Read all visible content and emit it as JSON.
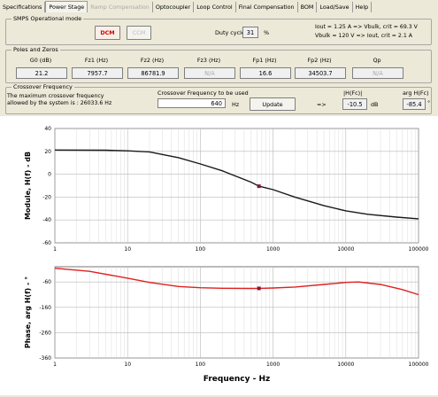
{
  "tabs": [
    {
      "label": "Specifications",
      "state": "normal"
    },
    {
      "label": "Power Stage",
      "state": "active"
    },
    {
      "label": "Ramp Compensation",
      "state": "disabled"
    },
    {
      "label": "Optocoupler",
      "state": "normal"
    },
    {
      "label": "Loop Control",
      "state": "normal"
    },
    {
      "label": "Final Compensation",
      "state": "normal"
    },
    {
      "label": "BOM",
      "state": "normal"
    },
    {
      "label": "Load/Save",
      "state": "normal"
    },
    {
      "label": "Help",
      "state": "normal"
    }
  ],
  "smps": {
    "group_label": "SMPS Operational mode",
    "mode1": "DCM",
    "mode2": "CCM",
    "duty_label": "Duty cycle",
    "duty_value": "31",
    "duty_unit": "%",
    "info_line1": "Iout = 1.25 A => Vbulk, crit = 69.3 V",
    "info_line2": "Vbulk = 120 V => Iout, crit = 2.1 A"
  },
  "poles": {
    "group_label": "Poles and Zeros",
    "items": [
      {
        "label": "G0 (dB)",
        "value": "21.2",
        "state": "value"
      },
      {
        "label": "Fz1 (Hz)",
        "value": "7957.7",
        "state": "value"
      },
      {
        "label": "Fz2 (Hz)",
        "value": "86781.9",
        "state": "value"
      },
      {
        "label": "Fz3 (Hz)",
        "value": "N/A",
        "state": "na"
      },
      {
        "label": "Fp1 (Hz)",
        "value": "16.6",
        "state": "value"
      },
      {
        "label": "Fp2 (Hz)",
        "value": "34503.7",
        "state": "value"
      },
      {
        "label": "Qp",
        "value": "N/A",
        "state": "na"
      }
    ]
  },
  "crossover": {
    "group_label": "Crossover Frequency",
    "desc_line1": "The maximum crossover frequency",
    "desc_line2": "allowed by the system is : 26033.6 Hz",
    "used_label": "Crossover Frequency to be used",
    "value": "640",
    "unit": "Hz",
    "update_label": "Update",
    "arrow": "=>",
    "hfc_label": "|H(Fc)|",
    "hfc_value": "-10.5",
    "hfc_unit": "dB",
    "arg_label": "arg H(Fc)",
    "arg_value": "-85.4",
    "arg_unit": "°"
  },
  "chart_data": [
    {
      "type": "line",
      "ylabel": "Module, H(f) - dB",
      "xscale": "log",
      "xlim": [
        1,
        100000
      ],
      "ylim": [
        -60,
        40
      ],
      "yticks": [
        "40",
        "20",
        "0",
        "-20",
        "-40",
        "-60"
      ],
      "xticks": [
        "1",
        "10",
        "100",
        "1000",
        "10000",
        "100000"
      ],
      "grid": true,
      "color": "#1a1a1a",
      "series": [
        {
          "x": [
            1,
            5,
            10,
            20,
            50,
            100,
            200,
            500,
            640,
            1000,
            2000,
            5000,
            10000,
            20000,
            50000,
            100000
          ],
          "y": [
            21.2,
            21,
            20.5,
            19.5,
            14.5,
            9,
            3,
            -7,
            -10.5,
            -13.5,
            -20,
            -27.5,
            -32,
            -35,
            -37.5,
            -39
          ]
        }
      ],
      "marker": {
        "x": 640,
        "y": -10.5
      }
    },
    {
      "type": "line",
      "ylabel": "Phase, arg H(f) - °",
      "xlabel": "Frequency - Hz",
      "xscale": "log",
      "xlim": [
        1,
        100000
      ],
      "ylim": [
        -360,
        0
      ],
      "yticks": [
        "-60",
        "-160",
        "-260",
        "-360"
      ],
      "xticks": [
        "1",
        "10",
        "100",
        "1000",
        "10000",
        "100000"
      ],
      "grid": true,
      "color": "#e02020",
      "series": [
        {
          "x": [
            1,
            3,
            10,
            20,
            50,
            100,
            200,
            500,
            640,
            1000,
            2000,
            5000,
            10000,
            15000,
            30000,
            60000,
            100000
          ],
          "y": [
            -6,
            -18,
            -45,
            -62,
            -78,
            -83,
            -85,
            -85.5,
            -85.4,
            -84,
            -80,
            -70,
            -62,
            -60,
            -70,
            -90,
            -110
          ]
        }
      ],
      "marker": {
        "x": 640,
        "y": -85.4
      }
    }
  ]
}
